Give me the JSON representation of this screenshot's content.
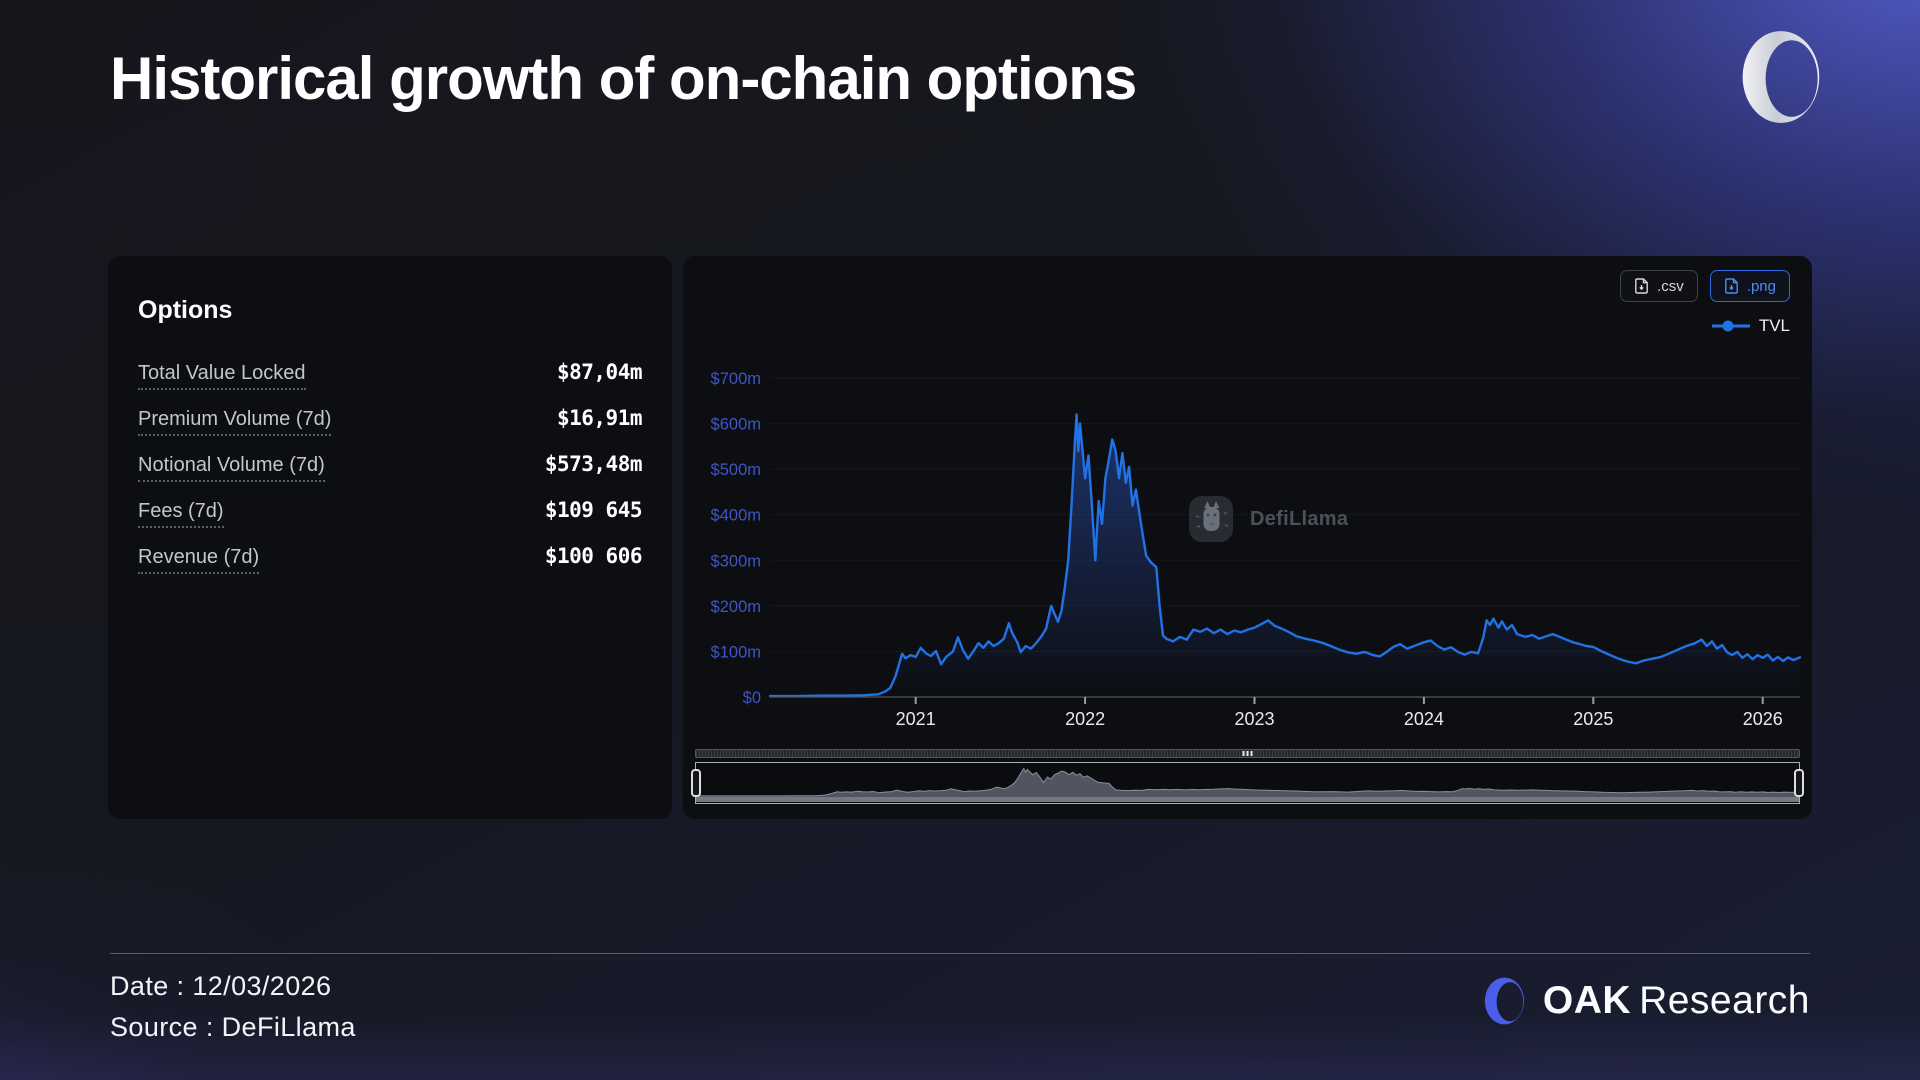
{
  "title": "Historical growth of on-chain options",
  "stats": {
    "heading": "Options",
    "rows": [
      {
        "label": "Total Value Locked",
        "value": "$87,04m"
      },
      {
        "label": "Premium Volume (7d)",
        "value": "$16,91m"
      },
      {
        "label": "Notional Volume (7d)",
        "value": "$573,48m"
      },
      {
        "label": "Fees (7d)",
        "value": "$109 645"
      },
      {
        "label": "Revenue (7d)",
        "value": "$100 606"
      }
    ]
  },
  "chart": {
    "buttons": [
      {
        "label": ".csv"
      },
      {
        "label": ".png"
      }
    ],
    "legend_label": "TVL",
    "watermark_text": "DefiLlama"
  },
  "chart_data": {
    "type": "line",
    "title": "Historical growth of on-chain options",
    "series_name": "TVL",
    "unit": "USD millions",
    "line_color": "#2172e5",
    "axis_label_color": "#3d55c9",
    "xlim": [
      2020.14,
      2026.22
    ],
    "ylim": [
      0,
      700
    ],
    "x_ticks": [
      2021,
      2022,
      2023,
      2024,
      2025,
      2026
    ],
    "y_ticks": [
      0,
      100,
      200,
      300,
      400,
      500,
      600,
      700
    ],
    "y_tick_labels": [
      "$0",
      "$100m",
      "$200m",
      "$300m",
      "$400m",
      "$500m",
      "$600m",
      "$700m"
    ],
    "grid": "faint-horizontal",
    "legend_position": "top-right",
    "points": [
      [
        2020.14,
        2
      ],
      [
        2020.3,
        2
      ],
      [
        2020.45,
        3
      ],
      [
        2020.6,
        3
      ],
      [
        2020.7,
        4
      ],
      [
        2020.78,
        6
      ],
      [
        2020.82,
        12
      ],
      [
        2020.85,
        20
      ],
      [
        2020.88,
        45
      ],
      [
        2020.9,
        70
      ],
      [
        2020.92,
        95
      ],
      [
        2020.94,
        85
      ],
      [
        2020.97,
        92
      ],
      [
        2021.0,
        88
      ],
      [
        2021.03,
        108
      ],
      [
        2021.06,
        96
      ],
      [
        2021.09,
        90
      ],
      [
        2021.12,
        101
      ],
      [
        2021.15,
        72
      ],
      [
        2021.18,
        88
      ],
      [
        2021.22,
        100
      ],
      [
        2021.25,
        131
      ],
      [
        2021.28,
        102
      ],
      [
        2021.31,
        84
      ],
      [
        2021.34,
        100
      ],
      [
        2021.37,
        118
      ],
      [
        2021.4,
        108
      ],
      [
        2021.43,
        122
      ],
      [
        2021.46,
        112
      ],
      [
        2021.49,
        118
      ],
      [
        2021.52,
        128
      ],
      [
        2021.55,
        162
      ],
      [
        2021.57,
        140
      ],
      [
        2021.6,
        120
      ],
      [
        2021.62,
        98
      ],
      [
        2021.65,
        112
      ],
      [
        2021.68,
        106
      ],
      [
        2021.71,
        118
      ],
      [
        2021.74,
        132
      ],
      [
        2021.77,
        150
      ],
      [
        2021.8,
        200
      ],
      [
        2021.82,
        182
      ],
      [
        2021.84,
        165
      ],
      [
        2021.86,
        188
      ],
      [
        2021.88,
        240
      ],
      [
        2021.9,
        300
      ],
      [
        2021.92,
        420
      ],
      [
        2021.94,
        560
      ],
      [
        2021.95,
        620
      ],
      [
        2021.96,
        540
      ],
      [
        2021.97,
        600
      ],
      [
        2021.98,
        560
      ],
      [
        2022.0,
        480
      ],
      [
        2022.02,
        530
      ],
      [
        2022.04,
        420
      ],
      [
        2022.06,
        300
      ],
      [
        2022.08,
        430
      ],
      [
        2022.1,
        380
      ],
      [
        2022.12,
        480
      ],
      [
        2022.14,
        520
      ],
      [
        2022.16,
        565
      ],
      [
        2022.18,
        540
      ],
      [
        2022.2,
        480
      ],
      [
        2022.22,
        535
      ],
      [
        2022.24,
        470
      ],
      [
        2022.26,
        505
      ],
      [
        2022.28,
        420
      ],
      [
        2022.3,
        455
      ],
      [
        2022.33,
        380
      ],
      [
        2022.36,
        310
      ],
      [
        2022.39,
        295
      ],
      [
        2022.42,
        285
      ],
      [
        2022.44,
        200
      ],
      [
        2022.46,
        135
      ],
      [
        2022.48,
        128
      ],
      [
        2022.52,
        122
      ],
      [
        2022.56,
        132
      ],
      [
        2022.6,
        126
      ],
      [
        2022.64,
        148
      ],
      [
        2022.68,
        143
      ],
      [
        2022.72,
        150
      ],
      [
        2022.76,
        140
      ],
      [
        2022.8,
        148
      ],
      [
        2022.84,
        138
      ],
      [
        2022.88,
        146
      ],
      [
        2022.92,
        142
      ],
      [
        2022.96,
        148
      ],
      [
        2023.0,
        152
      ],
      [
        2023.04,
        160
      ],
      [
        2023.08,
        168
      ],
      [
        2023.12,
        156
      ],
      [
        2023.16,
        150
      ],
      [
        2023.2,
        143
      ],
      [
        2023.25,
        133
      ],
      [
        2023.3,
        128
      ],
      [
        2023.35,
        124
      ],
      [
        2023.4,
        119
      ],
      [
        2023.45,
        112
      ],
      [
        2023.5,
        104
      ],
      [
        2023.55,
        98
      ],
      [
        2023.6,
        95
      ],
      [
        2023.65,
        99
      ],
      [
        2023.7,
        92
      ],
      [
        2023.74,
        89
      ],
      [
        2023.78,
        99
      ],
      [
        2023.82,
        110
      ],
      [
        2023.86,
        116
      ],
      [
        2023.9,
        106
      ],
      [
        2023.95,
        113
      ],
      [
        2024.0,
        120
      ],
      [
        2024.04,
        124
      ],
      [
        2024.08,
        112
      ],
      [
        2024.12,
        104
      ],
      [
        2024.16,
        109
      ],
      [
        2024.2,
        99
      ],
      [
        2024.24,
        93
      ],
      [
        2024.28,
        99
      ],
      [
        2024.32,
        96
      ],
      [
        2024.35,
        130
      ],
      [
        2024.37,
        168
      ],
      [
        2024.39,
        158
      ],
      [
        2024.41,
        172
      ],
      [
        2024.44,
        152
      ],
      [
        2024.46,
        166
      ],
      [
        2024.49,
        148
      ],
      [
        2024.52,
        158
      ],
      [
        2024.55,
        138
      ],
      [
        2024.6,
        132
      ],
      [
        2024.64,
        136
      ],
      [
        2024.68,
        128
      ],
      [
        2024.72,
        133
      ],
      [
        2024.76,
        138
      ],
      [
        2024.8,
        132
      ],
      [
        2024.84,
        126
      ],
      [
        2024.88,
        120
      ],
      [
        2024.92,
        116
      ],
      [
        2024.96,
        112
      ],
      [
        2025.0,
        110
      ],
      [
        2025.05,
        100
      ],
      [
        2025.1,
        92
      ],
      [
        2025.15,
        84
      ],
      [
        2025.2,
        78
      ],
      [
        2025.25,
        74
      ],
      [
        2025.3,
        80
      ],
      [
        2025.35,
        84
      ],
      [
        2025.4,
        88
      ],
      [
        2025.45,
        96
      ],
      [
        2025.5,
        104
      ],
      [
        2025.55,
        112
      ],
      [
        2025.6,
        118
      ],
      [
        2025.64,
        126
      ],
      [
        2025.67,
        112
      ],
      [
        2025.7,
        122
      ],
      [
        2025.73,
        106
      ],
      [
        2025.76,
        114
      ],
      [
        2025.79,
        98
      ],
      [
        2025.82,
        92
      ],
      [
        2025.85,
        99
      ],
      [
        2025.88,
        86
      ],
      [
        2025.91,
        94
      ],
      [
        2025.94,
        83
      ],
      [
        2025.97,
        92
      ],
      [
        2026.0,
        86
      ],
      [
        2026.03,
        93
      ],
      [
        2026.06,
        80
      ],
      [
        2026.09,
        88
      ],
      [
        2026.12,
        79
      ],
      [
        2026.15,
        87
      ],
      [
        2026.18,
        81
      ],
      [
        2026.22,
        87
      ]
    ]
  },
  "footer": {
    "date": "Date : 12/03/2026",
    "source": "Source : DeFiLlama"
  },
  "brand": {
    "bold": "OAK",
    "light": "Research"
  }
}
